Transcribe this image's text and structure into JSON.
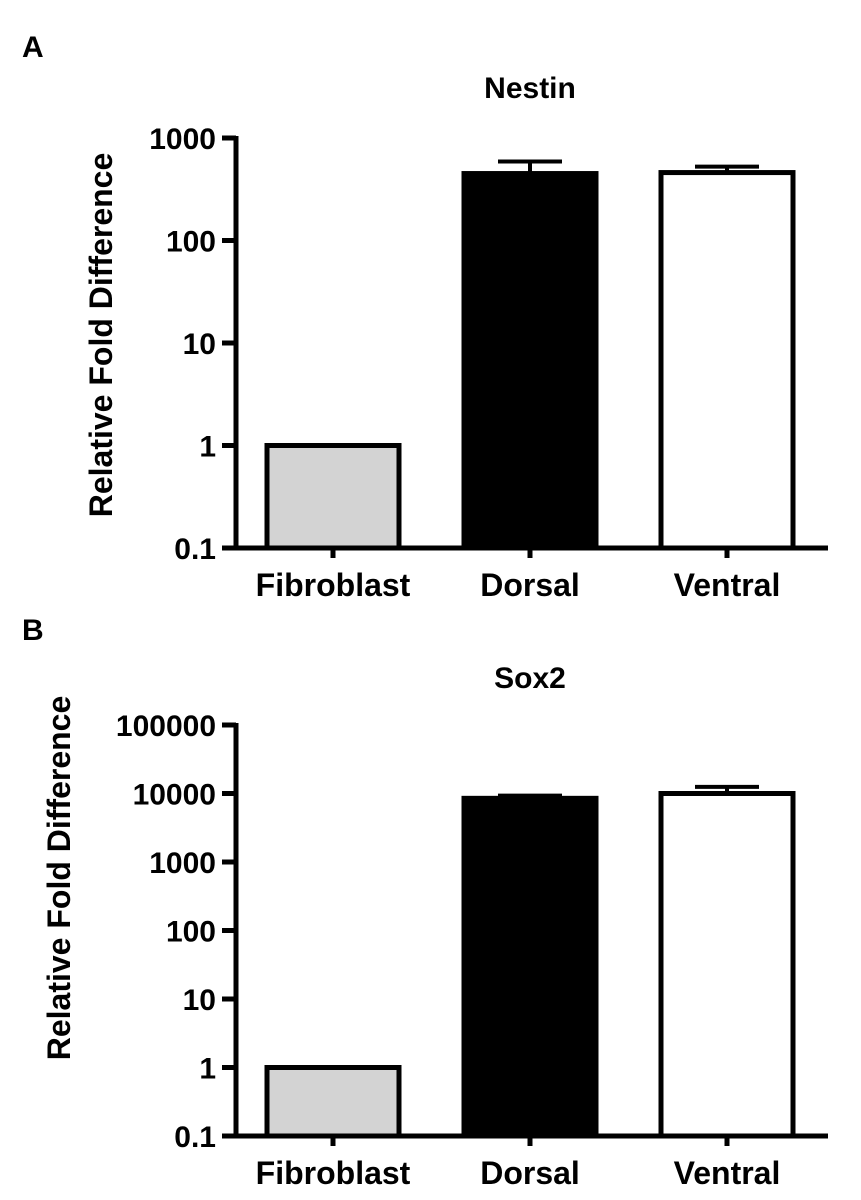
{
  "chart_data": [
    {
      "panel": "A",
      "type": "bar",
      "title": "Nestin",
      "ylabel": "Relative Fold Difference",
      "xlabel": "",
      "yscale": "log",
      "ylim": [
        0.1,
        1000
      ],
      "yticks": [
        "0.1",
        "1",
        "10",
        "100",
        "1000"
      ],
      "categories": [
        "Fibroblast",
        "Dorsal",
        "Ventral"
      ],
      "values": [
        1,
        450,
        460
      ],
      "error_upper": [
        null,
        590,
        525
      ],
      "colors": [
        "#d3d3d3",
        "#000000",
        "#ffffff"
      ],
      "grid": false
    },
    {
      "panel": "B",
      "type": "bar",
      "title": "Sox2",
      "ylabel": "Relative Fold Difference",
      "xlabel": "",
      "yscale": "log",
      "ylim": [
        0.1,
        100000
      ],
      "yticks": [
        "0.1",
        "1",
        "10",
        "100",
        "1000",
        "10000",
        "100000"
      ],
      "categories": [
        "Fibroblast",
        "Dorsal",
        "Ventral"
      ],
      "values": [
        1,
        8500,
        10000
      ],
      "error_upper": [
        null,
        9300,
        12500
      ],
      "colors": [
        "#d3d3d3",
        "#000000",
        "#ffffff"
      ],
      "grid": false
    }
  ]
}
